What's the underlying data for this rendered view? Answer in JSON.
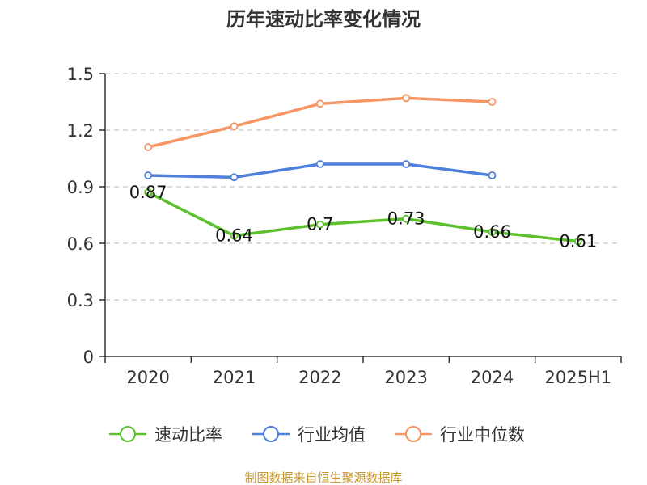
{
  "chart_data": {
    "type": "line",
    "title": "历年速动比率变化情况",
    "xlabel": "",
    "ylabel": "",
    "categories": [
      "2020",
      "2021",
      "2022",
      "2023",
      "2024",
      "2025H1"
    ],
    "ylim": [
      0,
      1.5
    ],
    "yticks": [
      "0",
      "0.3",
      "0.6",
      "0.9",
      "1.2",
      "1.5"
    ],
    "grid": true,
    "legend_position": "bottom",
    "series": [
      {
        "name": "速动比率",
        "color": "#5dc12e",
        "values": [
          0.87,
          0.64,
          0.7,
          0.73,
          0.66,
          0.61
        ],
        "labels": [
          "0.87",
          "0.64",
          "0.7",
          "0.73",
          "0.66",
          "0.61"
        ]
      },
      {
        "name": "行业均值",
        "color": "#4d7fdb",
        "values": [
          0.96,
          0.95,
          1.02,
          1.02,
          0.96,
          null
        ]
      },
      {
        "name": "行业中位数",
        "color": "#f79563",
        "values": [
          1.11,
          1.22,
          1.34,
          1.37,
          1.35,
          null
        ]
      }
    ]
  },
  "footer": {
    "source": "制图数据来自恒生聚源数据库"
  }
}
